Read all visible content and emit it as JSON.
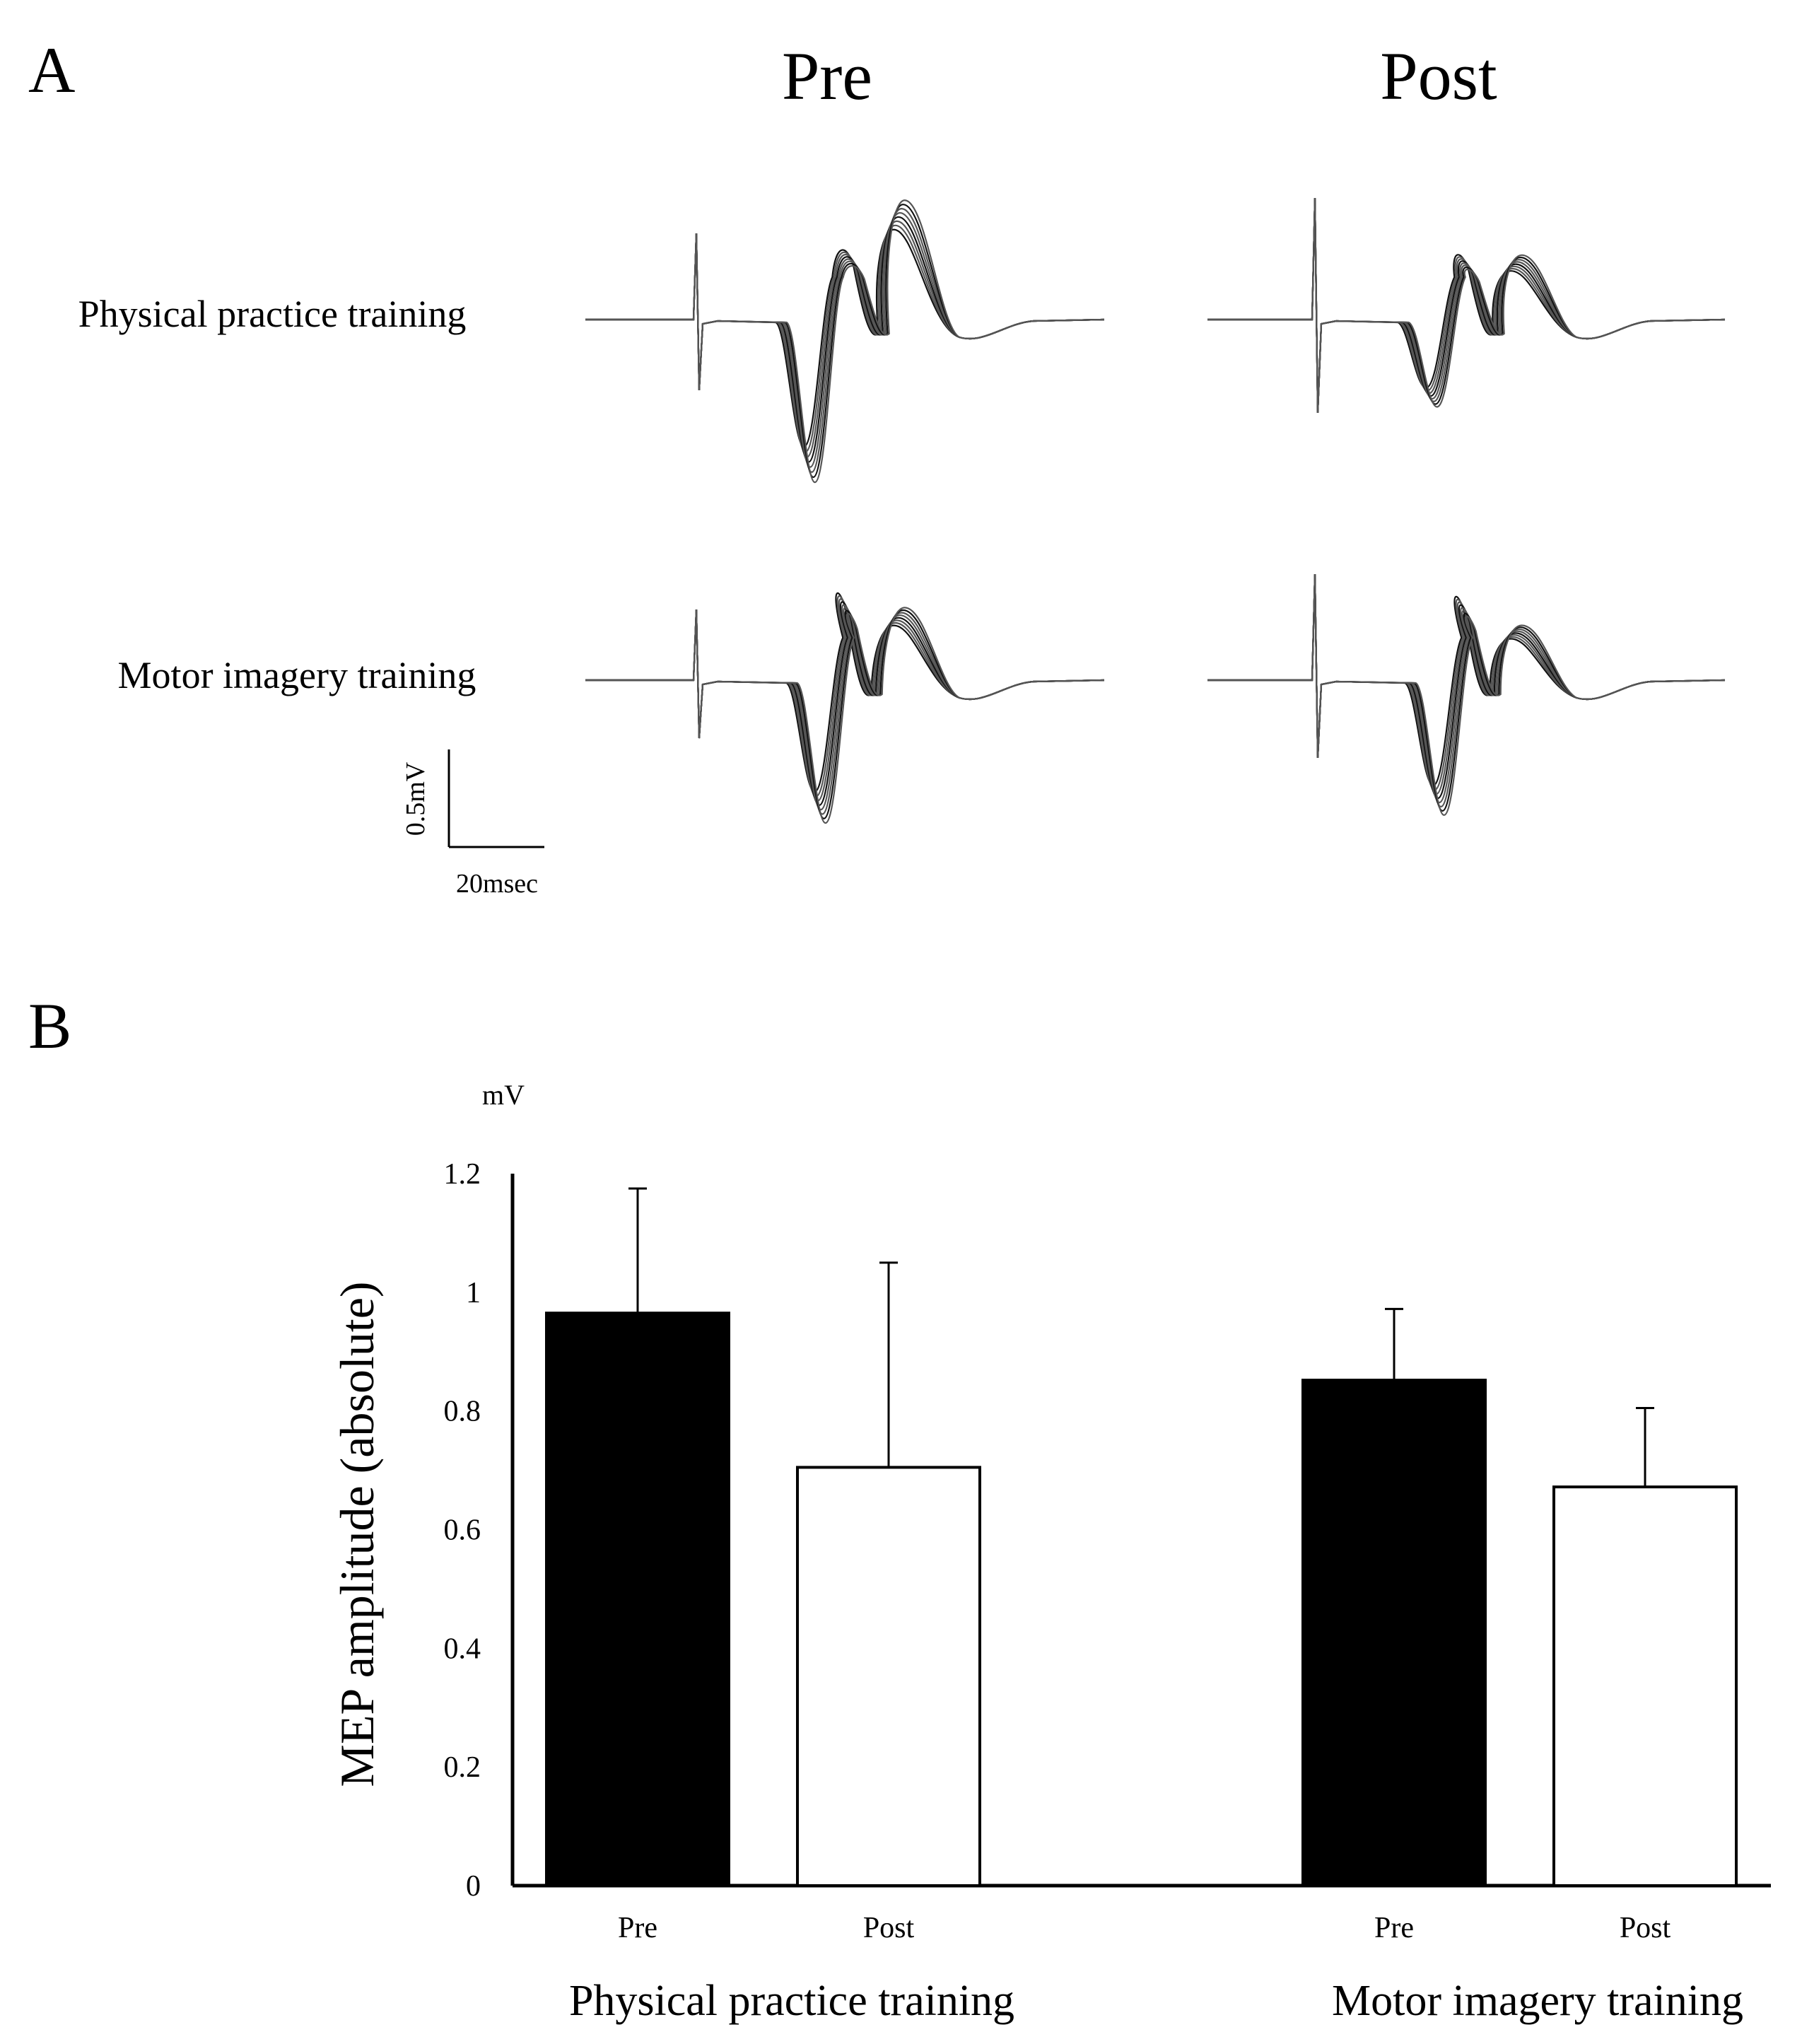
{
  "panel_a": {
    "letter": "A",
    "columns": [
      "Pre",
      "Post"
    ],
    "rows": [
      "Physical practice training",
      "Motor imagery training"
    ],
    "scale_bar": {
      "amplitude_label": "0.5mV",
      "time_label": "20msec"
    }
  },
  "panel_b": {
    "letter": "B",
    "unit_label": "mV"
  },
  "colors": {
    "pre_fill": "#000000",
    "post_fill": "#ffffff",
    "stroke": "#000000",
    "trace": "#333333"
  },
  "chart_data": {
    "type": "bar",
    "title": "",
    "ylabel": "MEP amplitude (absolute)",
    "xlabel": "",
    "ylim": [
      0,
      1.2
    ],
    "yticks": [
      "0",
      "0.2",
      "0.4",
      "0.6",
      "0.8",
      "1",
      "1.2"
    ],
    "grid": false,
    "groups": [
      {
        "name": "Physical practice training",
        "bars": [
          {
            "category": "Pre",
            "value": 0.965,
            "error": 0.21,
            "fill": "black"
          },
          {
            "category": "Post",
            "value": 0.705,
            "error": 0.345,
            "fill": "white"
          }
        ]
      },
      {
        "name": "Motor imagery training",
        "bars": [
          {
            "category": "Pre",
            "value": 0.852,
            "error": 0.12,
            "fill": "black"
          },
          {
            "category": "Post",
            "value": 0.672,
            "error": 0.133,
            "fill": "white"
          }
        ]
      }
    ]
  }
}
